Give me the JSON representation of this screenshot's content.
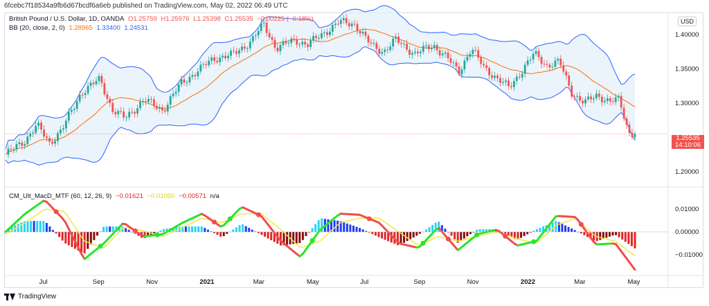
{
  "header": {
    "published_line": "6fcebc7f18534a9fb6d67bcdf6a6eb published on TradingView.com, May 02, 2022 06:49 UTC"
  },
  "main_legend": {
    "symbol": "British Pound / U.S. Dollar, 1D, OANDA",
    "o": "O1.25759",
    "h": "H1.25976",
    "l": "L1.25398",
    "c": "C1.25535",
    "change": "−0.00225 (−0.18%)"
  },
  "bb_legend": {
    "label": "BB (20, close, 2, 0)",
    "mid": "1.28965",
    "upper": "1.33400",
    "lower": "1.24531"
  },
  "currency_button": "USD",
  "price_axis": {
    "labels": [
      "1.40000",
      "1.35000",
      "1.30000",
      "1.20000"
    ]
  },
  "price_tag": {
    "price": "1.25535",
    "countdown": "14:10:06"
  },
  "macd_legend": {
    "label": "CM_Ult_MacD_MTF (60, 12, 26, 9)",
    "v1": "−0.01621",
    "v2": "−0.01050",
    "v3": "−0.00571",
    "v4": "n/a"
  },
  "macd_axis": {
    "labels": [
      "0.01000",
      "0.00000",
      "−0.01000"
    ]
  },
  "time_axis": {
    "labels": [
      "Jul",
      "Sep",
      "Nov",
      "2021",
      "Mar",
      "May",
      "Jul",
      "Sep",
      "Nov",
      "2022",
      "Mar",
      "May"
    ]
  },
  "footer": {
    "brand": "TradingView"
  },
  "colors": {
    "up": "#26a69a",
    "down": "#ef5350",
    "bb_band": "#2962ff",
    "bb_mid": "#ff6d00",
    "bb_fill": "#e3effa",
    "macd_green": "#29e528",
    "macd_red": "#f04d4d",
    "signal": "#f5e642",
    "hist_blue": "#1e3bf0",
    "hist_aqua": "#2ad2f5",
    "hist_red": "#e22525",
    "hist_maroon": "#8a0b0b"
  },
  "chart_data": {
    "type": "candlestick",
    "title": "British Pound / U.S. Dollar, 1D, OANDA",
    "ohlc_last": {
      "open": 1.25759,
      "high": 1.25976,
      "low": 1.25398,
      "close": 1.25535
    },
    "x_ticks": [
      "Jul",
      "Sep",
      "Nov",
      "2021",
      "Mar",
      "May",
      "Jul",
      "Sep",
      "Nov",
      "2022",
      "Mar",
      "May"
    ],
    "y_ticks": [
      1.2,
      1.3,
      1.35,
      1.4
    ],
    "y_range": [
      1.18,
      1.43
    ],
    "close_path": [
      {
        "t": 0,
        "c": 1.225
      },
      {
        "t": 0.03,
        "c": 1.245
      },
      {
        "t": 0.05,
        "c": 1.268
      },
      {
        "t": 0.07,
        "c": 1.242
      },
      {
        "t": 0.09,
        "c": 1.262
      },
      {
        "t": 0.12,
        "c": 1.315
      },
      {
        "t": 0.15,
        "c": 1.335
      },
      {
        "t": 0.17,
        "c": 1.29
      },
      {
        "t": 0.19,
        "c": 1.278
      },
      {
        "t": 0.22,
        "c": 1.305
      },
      {
        "t": 0.25,
        "c": 1.29
      },
      {
        "t": 0.28,
        "c": 1.33
      },
      {
        "t": 0.31,
        "c": 1.35
      },
      {
        "t": 0.33,
        "c": 1.365
      },
      {
        "t": 0.36,
        "c": 1.37
      },
      {
        "t": 0.39,
        "c": 1.39
      },
      {
        "t": 0.41,
        "c": 1.415
      },
      {
        "t": 0.43,
        "c": 1.38
      },
      {
        "t": 0.46,
        "c": 1.392
      },
      {
        "t": 0.48,
        "c": 1.385
      },
      {
        "t": 0.51,
        "c": 1.405
      },
      {
        "t": 0.53,
        "c": 1.418
      },
      {
        "t": 0.555,
        "c": 1.415
      },
      {
        "t": 0.58,
        "c": 1.385
      },
      {
        "t": 0.6,
        "c": 1.375
      },
      {
        "t": 0.62,
        "c": 1.392
      },
      {
        "t": 0.65,
        "c": 1.372
      },
      {
        "t": 0.68,
        "c": 1.384
      },
      {
        "t": 0.7,
        "c": 1.368
      },
      {
        "t": 0.72,
        "c": 1.345
      },
      {
        "t": 0.74,
        "c": 1.38
      },
      {
        "t": 0.76,
        "c": 1.352
      },
      {
        "t": 0.78,
        "c": 1.337
      },
      {
        "t": 0.8,
        "c": 1.322
      },
      {
        "t": 0.82,
        "c": 1.347
      },
      {
        "t": 0.84,
        "c": 1.372
      },
      {
        "t": 0.86,
        "c": 1.355
      },
      {
        "t": 0.88,
        "c": 1.36
      },
      {
        "t": 0.9,
        "c": 1.315
      },
      {
        "t": 0.92,
        "c": 1.3
      },
      {
        "t": 0.94,
        "c": 1.312
      },
      {
        "t": 0.96,
        "c": 1.302
      },
      {
        "t": 0.975,
        "c": 1.305
      },
      {
        "t": 0.99,
        "c": 1.258
      },
      {
        "t": 1.0,
        "c": 1.2553
      }
    ],
    "bollinger": {
      "period": 20,
      "stddev": 2,
      "upper": 1.334,
      "middle": 1.28965,
      "lower": 1.24531
    },
    "macd": {
      "name": "CM_Ult_MacD_MTF (60, 12, 26, 9)",
      "values": [
        -0.01621,
        -0.0105,
        -0.00571
      ],
      "y_ticks": [
        -0.01,
        0,
        0.01
      ],
      "macd_path": [
        0,
        0.008,
        0.014,
        0.005,
        -0.012,
        -0.005,
        0.004,
        -0.002,
        -0.001,
        0.004,
        0.008,
        0.002,
        0.011,
        0.007,
        -0.004,
        -0.011,
        0.001,
        0.008,
        0.0075,
        0.004,
        -0.005,
        -0.007,
        0.002,
        -0.008,
        -0.001,
        0.001,
        -0.006,
        -0.004,
        0.007,
        0.0065,
        -0.0055,
        -0.005,
        -0.0165
      ],
      "signal_path": [
        -0.001,
        0.004,
        0.01,
        0.009,
        -0.004,
        -0.007,
        0.002,
        0.0005,
        -0.002,
        0.002,
        0.006,
        0.004,
        0.008,
        0.008,
        0.001,
        -0.007,
        -0.004,
        0.004,
        0.006,
        0.006,
        0.0,
        -0.006,
        -0.002,
        -0.004,
        -0.002,
        0.0,
        -0.003,
        -0.005,
        0.003,
        0.006,
        -0.002,
        -0.004,
        -0.0105
      ]
    }
  }
}
